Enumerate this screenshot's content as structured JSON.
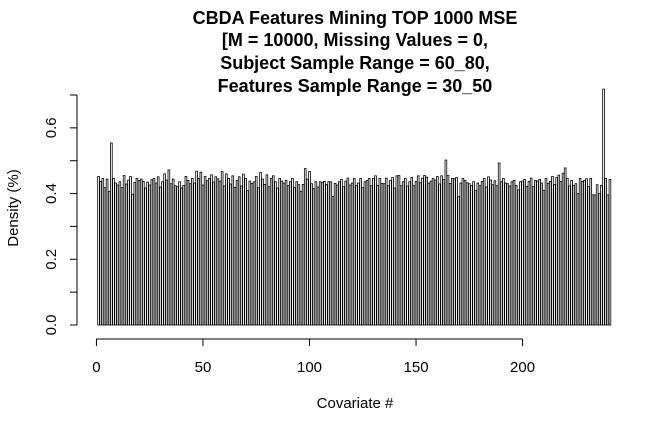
{
  "chart_data": {
    "type": "bar",
    "title_lines": [
      "CBDA Features Mining TOP 1000 MSE",
      "[M = 10000, Missing Values = 0,",
      "Subject Sample Range = 60_80,",
      "Features Sample Range = 30_50"
    ],
    "xlabel": "Covariate #",
    "ylabel": "Density (%)",
    "xlim": [
      1,
      231
    ],
    "ylim": [
      0,
      0.7
    ],
    "x_ticks": [
      0,
      50,
      100,
      150,
      200
    ],
    "y_ticks": [
      0.0,
      0.1,
      0.2,
      0.3,
      0.4,
      0.5,
      0.6,
      0.7
    ],
    "y_tick_labels": [
      "0.0",
      "",
      "0.2",
      "",
      "0.4",
      "",
      "0.6",
      ""
    ],
    "grid": false,
    "legend": "none",
    "values": [
      0.452,
      0.437,
      0.446,
      0.418,
      0.444,
      0.407,
      0.554,
      0.446,
      0.432,
      0.426,
      0.436,
      0.418,
      0.455,
      0.429,
      0.441,
      0.452,
      0.398,
      0.434,
      0.446,
      0.44,
      0.444,
      0.437,
      0.417,
      0.435,
      0.426,
      0.442,
      0.446,
      0.432,
      0.451,
      0.42,
      0.436,
      0.46,
      0.441,
      0.472,
      0.43,
      0.444,
      0.424,
      0.421,
      0.436,
      0.417,
      0.425,
      0.452,
      0.44,
      0.43,
      0.446,
      0.432,
      0.468,
      0.446,
      0.465,
      0.426,
      0.452,
      0.439,
      0.446,
      0.457,
      0.435,
      0.451,
      0.445,
      0.438,
      0.467,
      0.423,
      0.46,
      0.446,
      0.429,
      0.454,
      0.419,
      0.44,
      0.451,
      0.423,
      0.459,
      0.446,
      0.409,
      0.438,
      0.431,
      0.436,
      0.452,
      0.418,
      0.464,
      0.444,
      0.428,
      0.457,
      0.421,
      0.446,
      0.454,
      0.436,
      0.417,
      0.446,
      0.438,
      0.432,
      0.44,
      0.424,
      0.436,
      0.446,
      0.418,
      0.436,
      0.427,
      0.407,
      0.428,
      0.476,
      0.444,
      0.467,
      0.43,
      0.415,
      0.436,
      0.42,
      0.436,
      0.434,
      0.437,
      0.428,
      0.436,
      0.436,
      0.391,
      0.431,
      0.426,
      0.436,
      0.443,
      0.421,
      0.438,
      0.447,
      0.426,
      0.432,
      0.446,
      0.425,
      0.432,
      0.446,
      0.418,
      0.436,
      0.44,
      0.446,
      0.424,
      0.446,
      0.454,
      0.425,
      0.446,
      0.431,
      0.43,
      0.447,
      0.424,
      0.44,
      0.449,
      0.417,
      0.454,
      0.455,
      0.424,
      0.436,
      0.446,
      0.423,
      0.436,
      0.449,
      0.424,
      0.437,
      0.454,
      0.433,
      0.447,
      0.455,
      0.45,
      0.432,
      0.438,
      0.446,
      0.441,
      0.452,
      0.429,
      0.454,
      0.443,
      0.502,
      0.455,
      0.431,
      0.446,
      0.445,
      0.449,
      0.391,
      0.432,
      0.446,
      0.44,
      0.433,
      0.43,
      0.424,
      0.436,
      0.41,
      0.432,
      0.424,
      0.437,
      0.446,
      0.42,
      0.451,
      0.441,
      0.427,
      0.439,
      0.424,
      0.493,
      0.436,
      0.446,
      0.432,
      0.43,
      0.423,
      0.436,
      0.44,
      0.425,
      0.411,
      0.436,
      0.438,
      0.443,
      0.422,
      0.437,
      0.447,
      0.421,
      0.44,
      0.438,
      0.443,
      0.432,
      0.41,
      0.446,
      0.431,
      0.437,
      0.452,
      0.428,
      0.449,
      0.456,
      0.437,
      0.462,
      0.478,
      0.446,
      0.423,
      0.44,
      0.425,
      0.43,
      0.4,
      0.446,
      0.437,
      0.44,
      0.445,
      0.421,
      0.446,
      0.396,
      0.396,
      0.427,
      0.4,
      0.425,
      0.718,
      0.446,
      0.396,
      0.443
    ]
  }
}
